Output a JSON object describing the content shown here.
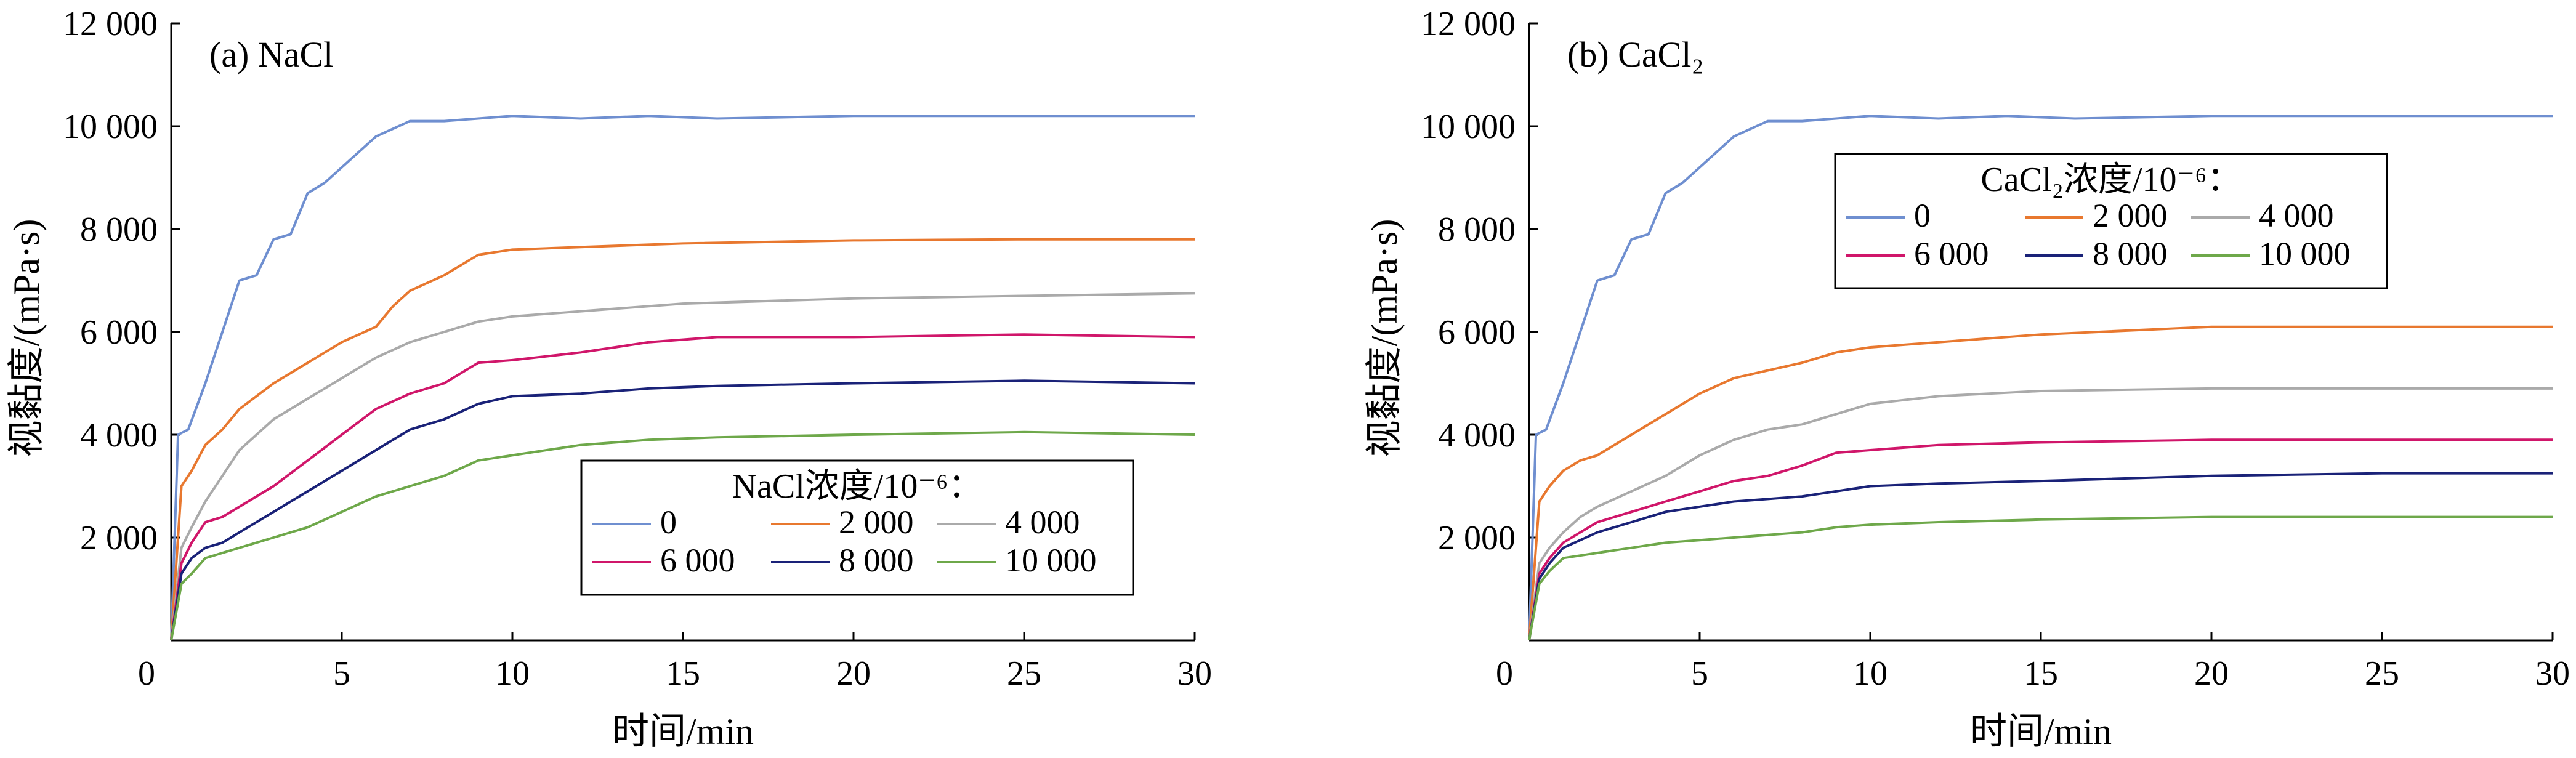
{
  "chart_data": [
    {
      "type": "line",
      "panel_label": "(a) NaCl",
      "xlabel": "时间/min",
      "ylabel": "视黏度/(mPa·s)",
      "xlim": [
        0,
        30
      ],
      "ylim": [
        0,
        12000
      ],
      "xticks": [
        0,
        5,
        10,
        15,
        20,
        25,
        30
      ],
      "xtick_labels": [
        "0",
        "5",
        "10",
        "15",
        "20",
        "25",
        "30"
      ],
      "yticks": [
        2000,
        4000,
        6000,
        8000,
        10000,
        12000
      ],
      "ytick_labels": [
        "2 000",
        "4 000",
        "6 000",
        "8 000",
        "10 000",
        "12 000"
      ],
      "legend_title": "NaCl浓度/10⁻⁶：",
      "legend_position": "lower-right",
      "series": [
        {
          "name": "0",
          "color": "#6f8fd0",
          "x": [
            0,
            0.2,
            0.5,
            1,
            1.5,
            2,
            2.5,
            3,
            3.5,
            4,
            4.5,
            5,
            5.5,
            6,
            7,
            8,
            9,
            10,
            12,
            14,
            16,
            20,
            25,
            30
          ],
          "y": [
            0,
            4000,
            4100,
            5000,
            6000,
            7000,
            7100,
            7800,
            7900,
            8700,
            8900,
            9200,
            9500,
            9800,
            10100,
            10100,
            10150,
            10200,
            10150,
            10200,
            10150,
            10200,
            10200,
            10200
          ]
        },
        {
          "name": "2 000",
          "color": "#e8782f",
          "x": [
            0,
            0.3,
            0.6,
            1,
            1.5,
            2,
            3,
            4,
            5,
            6,
            6.5,
            7,
            8,
            9,
            10,
            12,
            15,
            20,
            25,
            30
          ],
          "y": [
            0,
            3000,
            3300,
            3800,
            4100,
            4500,
            5000,
            5400,
            5800,
            6100,
            6500,
            6800,
            7100,
            7500,
            7600,
            7650,
            7720,
            7780,
            7800,
            7800
          ]
        },
        {
          "name": "4 000",
          "color": "#aaaaaa",
          "x": [
            0,
            0.3,
            0.6,
            1,
            1.5,
            2,
            2.5,
            3,
            4,
            5,
            6,
            7,
            8,
            9,
            10,
            12,
            15,
            20,
            25,
            30
          ],
          "y": [
            0,
            1800,
            2200,
            2700,
            3200,
            3700,
            4000,
            4300,
            4700,
            5100,
            5500,
            5800,
            6000,
            6200,
            6300,
            6400,
            6550,
            6650,
            6700,
            6750
          ]
        },
        {
          "name": "6 000",
          "color": "#d0166a",
          "x": [
            0,
            0.3,
            0.6,
            1,
            1.5,
            2,
            3,
            4,
            5,
            6,
            7,
            8,
            8.5,
            9,
            10,
            12,
            14,
            16,
            20,
            25,
            30
          ],
          "y": [
            0,
            1500,
            1900,
            2300,
            2400,
            2600,
            3000,
            3500,
            4000,
            4500,
            4800,
            5000,
            5200,
            5400,
            5450,
            5600,
            5800,
            5900,
            5900,
            5950,
            5900
          ]
        },
        {
          "name": "8 000",
          "color": "#1a2278",
          "x": [
            0,
            0.3,
            0.6,
            1,
            1.5,
            2,
            3,
            4,
            5,
            6,
            7,
            8,
            9,
            10,
            12,
            14,
            16,
            20,
            25,
            30
          ],
          "y": [
            0,
            1300,
            1600,
            1800,
            1900,
            2100,
            2500,
            2900,
            3300,
            3700,
            4100,
            4300,
            4600,
            4750,
            4800,
            4900,
            4950,
            5000,
            5050,
            5000
          ]
        },
        {
          "name": "10 000",
          "color": "#6ea84a",
          "x": [
            0,
            0.3,
            0.6,
            1,
            1.5,
            2,
            3,
            4,
            5,
            6,
            7,
            8,
            9,
            10,
            12,
            14,
            16,
            20,
            25,
            30
          ],
          "y": [
            0,
            1100,
            1300,
            1600,
            1700,
            1800,
            2000,
            2200,
            2500,
            2800,
            3000,
            3200,
            3500,
            3600,
            3800,
            3900,
            3950,
            4000,
            4050,
            4000
          ]
        }
      ]
    },
    {
      "type": "line",
      "panel_label": "(b) CaCl₂",
      "xlabel": "时间/min",
      "ylabel": "视黏度/(mPa·s)",
      "xlim": [
        0,
        30
      ],
      "ylim": [
        0,
        12000
      ],
      "xticks": [
        0,
        5,
        10,
        15,
        20,
        25,
        30
      ],
      "xtick_labels": [
        "0",
        "5",
        "10",
        "15",
        "20",
        "25",
        "30"
      ],
      "yticks": [
        2000,
        4000,
        6000,
        8000,
        10000,
        12000
      ],
      "ytick_labels": [
        "2 000",
        "4 000",
        "6 000",
        "8 000",
        "10 000",
        "12 000"
      ],
      "legend_title": "CaCl₂浓度/10⁻⁶：",
      "legend_position": "upper-center",
      "series": [
        {
          "name": "0",
          "color": "#6f8fd0",
          "x": [
            0,
            0.2,
            0.5,
            1,
            1.5,
            2,
            2.5,
            3,
            3.5,
            4,
            4.5,
            5,
            5.5,
            6,
            7,
            8,
            9,
            10,
            12,
            14,
            16,
            20,
            25,
            30
          ],
          "y": [
            0,
            4000,
            4100,
            5000,
            6000,
            7000,
            7100,
            7800,
            7900,
            8700,
            8900,
            9200,
            9500,
            9800,
            10100,
            10100,
            10150,
            10200,
            10150,
            10200,
            10150,
            10200,
            10200,
            10200
          ]
        },
        {
          "name": "2 000",
          "color": "#e8782f",
          "x": [
            0,
            0.3,
            0.6,
            1,
            1.5,
            2,
            3,
            4,
            5,
            6,
            7,
            8,
            9,
            10,
            12,
            15,
            20,
            25,
            30
          ],
          "y": [
            0,
            2700,
            3000,
            3300,
            3500,
            3600,
            4000,
            4400,
            4800,
            5100,
            5250,
            5400,
            5600,
            5700,
            5800,
            5950,
            6100,
            6100,
            6100
          ]
        },
        {
          "name": "4 000",
          "color": "#aaaaaa",
          "x": [
            0,
            0.3,
            0.6,
            1,
            1.5,
            2,
            3,
            4,
            5,
            6,
            6.5,
            7,
            8,
            9,
            10,
            12,
            15,
            20,
            25,
            30
          ],
          "y": [
            0,
            1500,
            1800,
            2100,
            2400,
            2600,
            2900,
            3200,
            3600,
            3900,
            4000,
            4100,
            4200,
            4400,
            4600,
            4750,
            4850,
            4900,
            4900,
            4900
          ]
        },
        {
          "name": "6 000",
          "color": "#d0166a",
          "x": [
            0,
            0.3,
            0.6,
            1,
            1.5,
            2,
            3,
            4,
            5,
            6,
            7,
            8,
            9,
            10,
            12,
            15,
            20,
            25,
            30
          ],
          "y": [
            0,
            1300,
            1600,
            1900,
            2100,
            2300,
            2500,
            2700,
            2900,
            3100,
            3200,
            3400,
            3650,
            3700,
            3800,
            3850,
            3900,
            3900,
            3900
          ]
        },
        {
          "name": "8 000",
          "color": "#1a2278",
          "x": [
            0,
            0.3,
            0.6,
            1,
            1.5,
            2,
            3,
            4,
            5,
            6,
            7,
            8,
            9,
            10,
            12,
            15,
            20,
            25,
            30
          ],
          "y": [
            0,
            1200,
            1500,
            1800,
            1950,
            2100,
            2300,
            2500,
            2600,
            2700,
            2750,
            2800,
            2900,
            3000,
            3050,
            3100,
            3200,
            3250,
            3250
          ]
        },
        {
          "name": "10 000",
          "color": "#6ea84a",
          "x": [
            0,
            0.3,
            0.6,
            1,
            1.5,
            2,
            3,
            4,
            5,
            6,
            7,
            8,
            9,
            10,
            12,
            15,
            20,
            25,
            30
          ],
          "y": [
            0,
            1100,
            1350,
            1600,
            1650,
            1700,
            1800,
            1900,
            1950,
            2000,
            2050,
            2100,
            2200,
            2250,
            2300,
            2350,
            2400,
            2400,
            2400
          ]
        }
      ]
    }
  ]
}
